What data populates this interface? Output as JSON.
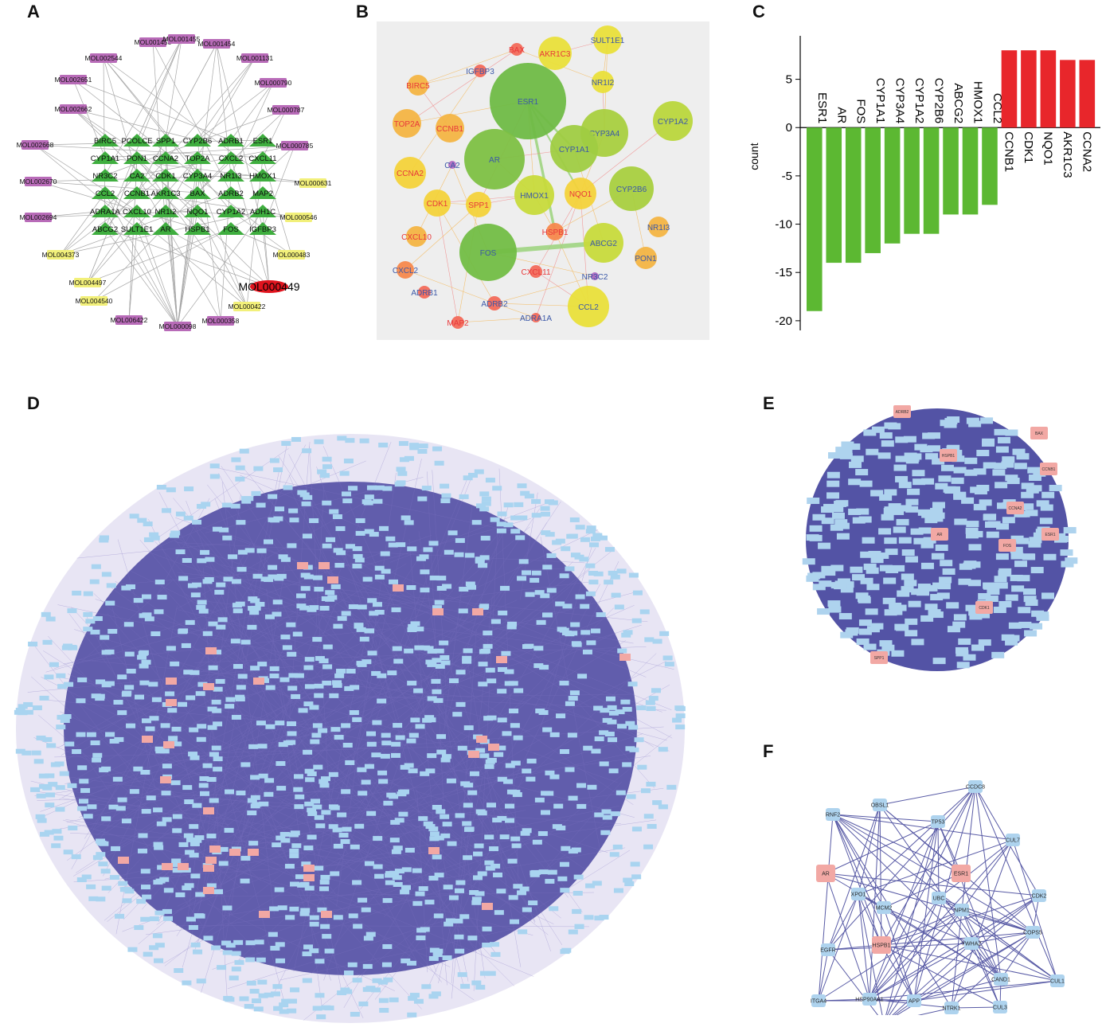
{
  "panels": {
    "A": {
      "label": "A",
      "highlight": "MOL000449",
      "colors": {
        "herb_purple": "#b86bb8",
        "shared_yellow": "#f2f07a",
        "target_green": "#3fae3f",
        "highlight_red": "#e0141e",
        "edge": "#8a8a8a"
      },
      "outer_nodes": [
        {
          "id": "MOL001458",
          "kind": "purple"
        },
        {
          "id": "MOL001455",
          "kind": "purple"
        },
        {
          "id": "MOL001454",
          "kind": "purple"
        },
        {
          "id": "MOL002544",
          "kind": "purple"
        },
        {
          "id": "MOL001131",
          "kind": "purple"
        },
        {
          "id": "MOL002651",
          "kind": "purple"
        },
        {
          "id": "MOL000790",
          "kind": "purple"
        },
        {
          "id": "MOL002662",
          "kind": "purple"
        },
        {
          "id": "MOL000787",
          "kind": "purple"
        },
        {
          "id": "MOL002668",
          "kind": "purple"
        },
        {
          "id": "MOL000785",
          "kind": "purple"
        },
        {
          "id": "MOL002670",
          "kind": "purple"
        },
        {
          "id": "MOL000631",
          "kind": "yellow"
        },
        {
          "id": "MOL002694",
          "kind": "purple"
        },
        {
          "id": "MOL000546",
          "kind": "yellow"
        },
        {
          "id": "MOL004373",
          "kind": "yellow"
        },
        {
          "id": "MOL000483",
          "kind": "yellow"
        },
        {
          "id": "MOL004497",
          "kind": "yellow"
        },
        {
          "id": "MOL004540",
          "kind": "yellow"
        },
        {
          "id": "MOL000422",
          "kind": "yellow"
        },
        {
          "id": "MOL006422",
          "kind": "purple"
        },
        {
          "id": "MOL000098",
          "kind": "purple"
        },
        {
          "id": "MOL000358",
          "kind": "purple"
        }
      ],
      "targets": [
        [
          "BIRC5",
          "PCOLCE",
          "SPP1",
          "CYP2B6",
          "ADRB1",
          "ESR1"
        ],
        [
          "CYP1A1",
          "PON1",
          "CCNA2",
          "TOP2A",
          "CXCL2",
          "CXCL11"
        ],
        [
          "NR3C2",
          "CA2",
          "CDK1",
          "CYP3A4",
          "NR1I3",
          "HMOX1"
        ],
        [
          "CCL2",
          "CCNB1",
          "AKR1C3",
          "BAX",
          "ADRB2",
          "MAP2"
        ],
        [
          "ADRA1A",
          "CXCL10",
          "NR1I2",
          "NQO1",
          "CYP1A2",
          "ADH1C"
        ],
        [
          "ABCG2",
          "SULT1E1",
          "AR",
          "HSPB1",
          "FOS",
          "IGFBP3"
        ]
      ]
    },
    "B": {
      "label": "B",
      "nodes": [
        {
          "id": "BAX",
          "fill": "#f26a5a",
          "text": "#e8383a"
        },
        {
          "id": "AKR1C3",
          "fill": "#e9df3a",
          "text": "#e8383a"
        },
        {
          "id": "SULT1E1",
          "fill": "#e9df3a",
          "text": "#3b58a8"
        },
        {
          "id": "IGFBP3",
          "fill": "#f26a5a",
          "text": "#3b58a8"
        },
        {
          "id": "BIRC5",
          "fill": "#f3b443",
          "text": "#e8383a"
        },
        {
          "id": "ESR1",
          "fill": "#6fbb46",
          "text": "#3b58a8"
        },
        {
          "id": "NR1I2",
          "fill": "#e9df3a",
          "text": "#3b58a8"
        },
        {
          "id": "TOP2A",
          "fill": "#f3b443",
          "text": "#e8383a"
        },
        {
          "id": "CCNB1",
          "fill": "#f3b443",
          "text": "#e8383a"
        },
        {
          "id": "CYP3A4",
          "fill": "#a8cf3f",
          "text": "#3b58a8"
        },
        {
          "id": "CYP1A2",
          "fill": "#b9d63c",
          "text": "#3b58a8"
        },
        {
          "id": "AR",
          "fill": "#7dc043",
          "text": "#3b58a8"
        },
        {
          "id": "CYP1A1",
          "fill": "#9fcc42",
          "text": "#3b58a8"
        },
        {
          "id": "CA2",
          "fill": "#b06ac0",
          "text": "#3b58a8"
        },
        {
          "id": "CCNA2",
          "fill": "#f3d23a",
          "text": "#e8383a"
        },
        {
          "id": "CDK1",
          "fill": "#f3d23a",
          "text": "#e8383a"
        },
        {
          "id": "SPP1",
          "fill": "#f3d23a",
          "text": "#e8383a"
        },
        {
          "id": "HMOX1",
          "fill": "#c7da3b",
          "text": "#3b58a8"
        },
        {
          "id": "NQO1",
          "fill": "#f3d23a",
          "text": "#e8383a"
        },
        {
          "id": "CYP2B6",
          "fill": "#a8cf3f",
          "text": "#3b58a8"
        },
        {
          "id": "NR1I3",
          "fill": "#f3b443",
          "text": "#3b58a8"
        },
        {
          "id": "CXCL10",
          "fill": "#f3b443",
          "text": "#e8383a"
        },
        {
          "id": "HSPB1",
          "fill": "#f6884c",
          "text": "#e8383a"
        },
        {
          "id": "ABCG2",
          "fill": "#c7da3b",
          "text": "#3b58a8"
        },
        {
          "id": "FOS",
          "fill": "#72bd44",
          "text": "#3b58a8"
        },
        {
          "id": "PON1",
          "fill": "#f3b443",
          "text": "#3b58a8"
        },
        {
          "id": "CXCL2",
          "fill": "#f6884c",
          "text": "#3b58a8"
        },
        {
          "id": "CXCL11",
          "fill": "#f26a5a",
          "text": "#e8383a"
        },
        {
          "id": "NR3C2",
          "fill": "#b06ac0",
          "text": "#3b58a8"
        },
        {
          "id": "ADRB1",
          "fill": "#f26a5a",
          "text": "#3b58a8"
        },
        {
          "id": "ADRB2",
          "fill": "#f26a5a",
          "text": "#3b58a8"
        },
        {
          "id": "ADRA1A",
          "fill": "#f26a5a",
          "text": "#3b58a8"
        },
        {
          "id": "MAP2",
          "fill": "#f26a5a",
          "text": "#e8383a"
        },
        {
          "id": "CCL2",
          "fill": "#e9df3a",
          "text": "#3b58a8"
        }
      ]
    },
    "C": {
      "label": "C",
      "chart_data": {
        "type": "bar",
        "categories": [
          "ESR1",
          "AR",
          "FOS",
          "CYP1A1",
          "CYP3A4",
          "CYP1A2",
          "CYP2B6",
          "ABCG2",
          "HMOX1",
          "CCL2",
          "CCNB1",
          "CDK1",
          "NQO1",
          "AKR1C3",
          "CCNA2"
        ],
        "values": [
          -19,
          -14,
          -14,
          -13,
          -12,
          -11,
          -11,
          -9,
          -9,
          -8,
          8,
          8,
          8,
          7,
          7
        ],
        "ylabel": "count",
        "ylim": [
          -21,
          9.5
        ],
        "yticks": [
          5,
          0,
          -5,
          -10,
          -15,
          -20
        ],
        "colors": {
          "negative": "#5cb832",
          "positive": "#e8262b"
        }
      }
    },
    "D": {
      "label": "D"
    },
    "E": {
      "label": "E",
      "highlight_labels": [
        "ADRB2",
        "BAX",
        "HSPB1",
        "CCNB1",
        "CCNA2",
        "AR",
        "ESR1",
        "FOS",
        "CDK1",
        "SPP1"
      ]
    },
    "F": {
      "label": "F",
      "nodes": [
        {
          "id": "CCDC8",
          "hl": false
        },
        {
          "id": "OBSL1",
          "hl": false
        },
        {
          "id": "RNF2",
          "hl": false
        },
        {
          "id": "TP53",
          "hl": false
        },
        {
          "id": "CUL7",
          "hl": false
        },
        {
          "id": "AR",
          "hl": true
        },
        {
          "id": "ESR1",
          "hl": true
        },
        {
          "id": "XPO1",
          "hl": false
        },
        {
          "id": "UBC",
          "hl": false
        },
        {
          "id": "CDK2",
          "hl": false
        },
        {
          "id": "MCM2",
          "hl": false
        },
        {
          "id": "NPM1",
          "hl": false
        },
        {
          "id": "COPS5",
          "hl": false
        },
        {
          "id": "HSPB1",
          "hl": true
        },
        {
          "id": "YWHAZ",
          "hl": false
        },
        {
          "id": "EGFR",
          "hl": false
        },
        {
          "id": "CAND1",
          "hl": false
        },
        {
          "id": "CUL1",
          "hl": false
        },
        {
          "id": "ITGA4",
          "hl": false
        },
        {
          "id": "HSP90AA1",
          "hl": false
        },
        {
          "id": "APP",
          "hl": false
        },
        {
          "id": "NTRK1",
          "hl": false
        },
        {
          "id": "CUL3",
          "hl": false
        },
        {
          "id": "FN1",
          "hl": false
        }
      ],
      "colors": {
        "node": "#aed3ee",
        "highlight": "#f2a8a4",
        "edge": "#3b3e96"
      }
    }
  }
}
